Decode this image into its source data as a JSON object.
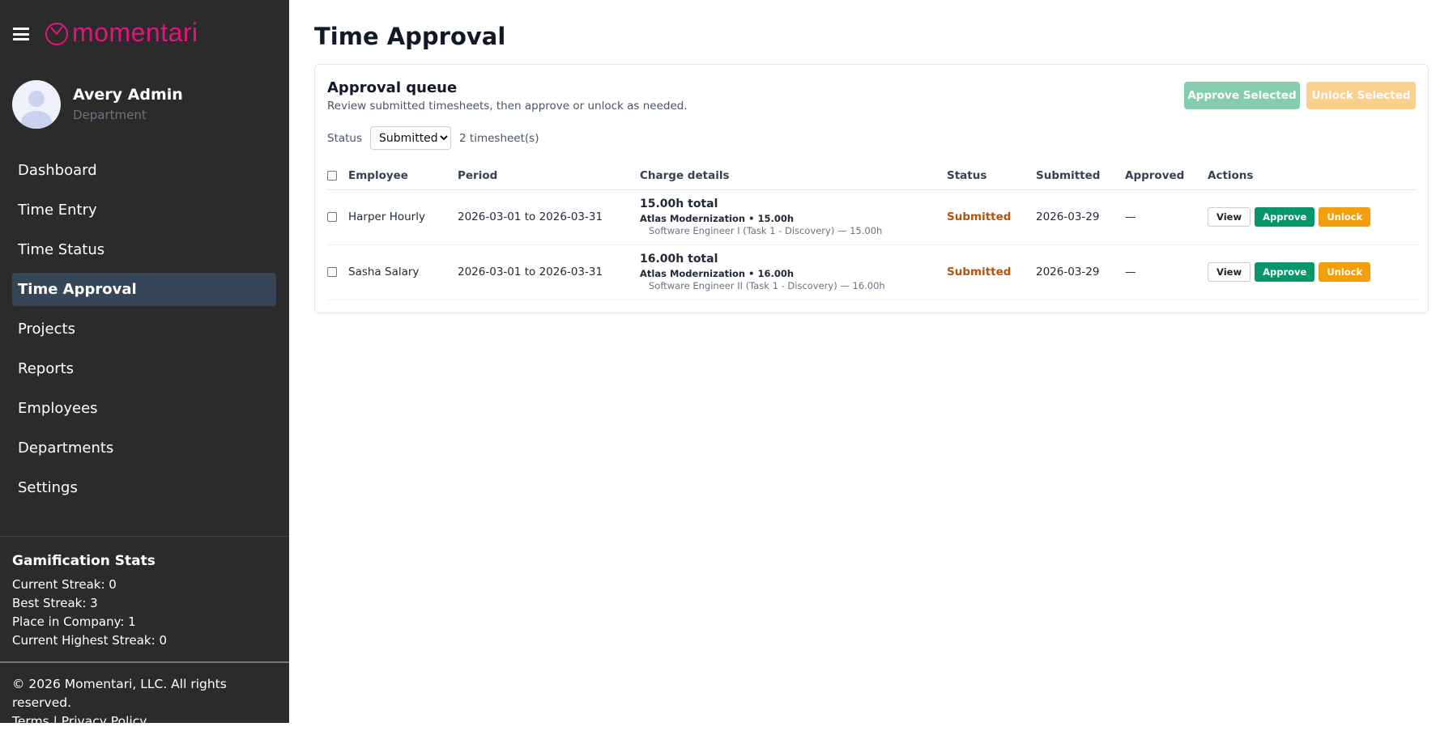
{
  "brand": {
    "name": "momentari",
    "color": "#e0157a"
  },
  "user": {
    "name": "Avery Admin",
    "subtitle": "Department"
  },
  "nav": {
    "items": [
      {
        "label": "Dashboard"
      },
      {
        "label": "Time Entry"
      },
      {
        "label": "Time Status"
      },
      {
        "label": "Time Approval",
        "active": true
      },
      {
        "label": "Projects"
      },
      {
        "label": "Reports"
      },
      {
        "label": "Employees"
      },
      {
        "label": "Departments"
      },
      {
        "label": "Settings"
      }
    ]
  },
  "gamification": {
    "title": "Gamification Stats",
    "current_streak": "Current Streak: 0",
    "best_streak": "Best Streak: 3",
    "place": "Place in Company: 1",
    "highest": "Current Highest Streak: 0"
  },
  "footer": {
    "copyright": "© 2026 Momentari, LLC. All rights reserved.",
    "terms": "Terms",
    "separator": "|",
    "privacy": "Privacy Policy"
  },
  "page": {
    "title": "Time Approval"
  },
  "queue": {
    "title": "Approval queue",
    "subtitle": "Review submitted timesheets, then approve or unlock as needed.",
    "approve_selected": "Approve Selected",
    "unlock_selected": "Unlock Selected",
    "status_label": "Status",
    "status_value": "Submitted",
    "count": "2 timesheet(s)",
    "columns": [
      "Employee",
      "Period",
      "Charge details",
      "Status",
      "Submitted",
      "Approved",
      "Actions"
    ],
    "rows": [
      {
        "employee": "Harper Hourly",
        "period": "2026-03-01 to 2026-03-31",
        "total": "15.00h total",
        "project": "Atlas Modernization • 15.00h",
        "task": "Software Engineer I (Task 1 - Discovery) — 15.00h",
        "status": "Submitted",
        "submitted": "2026-03-29",
        "approved": "—"
      },
      {
        "employee": "Sasha Salary",
        "period": "2026-03-01 to 2026-03-31",
        "total": "16.00h total",
        "project": "Atlas Modernization • 16.00h",
        "task": "Software Engineer II (Task 1 - Discovery) — 16.00h",
        "status": "Submitted",
        "submitted": "2026-03-29",
        "approved": "—"
      }
    ],
    "actions": {
      "view": "View",
      "approve": "Approve",
      "unlock": "Unlock"
    }
  }
}
